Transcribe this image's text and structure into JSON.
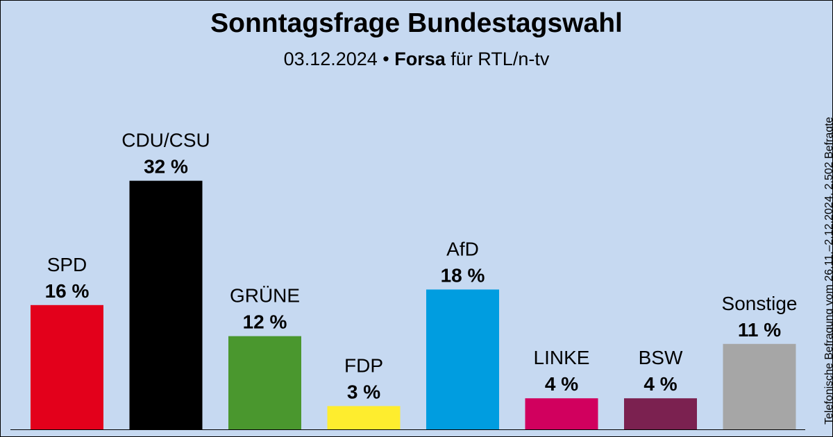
{
  "header": {
    "title": "Sonntagsfrage Bundestagswahl",
    "date": "03.12.2024",
    "separator": " • ",
    "institute": "Forsa",
    "client": " für RTL/n-tv"
  },
  "side_note": "Telefonische Befragung vom 26.11.–2.12.2024, 2.502 Befragte",
  "chart_data": {
    "type": "bar",
    "title": "Sonntagsfrage Bundestagswahl",
    "subtitle": "03.12.2024 • Forsa für RTL/n-tv",
    "categories": [
      "SPD",
      "CDU/CSU",
      "GRÜNE",
      "FDP",
      "AfD",
      "LINKE",
      "BSW",
      "Sonstige"
    ],
    "values": [
      16,
      32,
      12,
      3,
      18,
      4,
      4,
      11
    ],
    "value_labels": [
      "16 %",
      "32 %",
      "12 %",
      "3 %",
      "18 %",
      "4 %",
      "4 %",
      "11 %"
    ],
    "colors": [
      "#e3001b",
      "#000000",
      "#4a972e",
      "#feed2e",
      "#009de0",
      "#d1005e",
      "#7b2150",
      "#a6a6a6"
    ],
    "unit": "%",
    "grid": false
  }
}
